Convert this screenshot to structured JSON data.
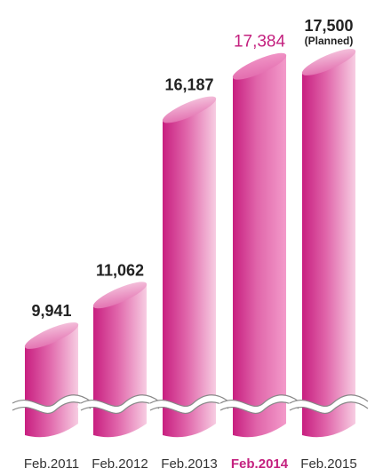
{
  "colors": {
    "accent": "#c4217f",
    "bar_dark": "#c81f80",
    "bar_mid": "#e065aa",
    "bar_light": "#f7cde2",
    "bar_light_current": "#f39bca",
    "text": "#222222"
  },
  "chart_data": {
    "type": "bar",
    "style": "3D cylinders with broken axis (wavy break lines)",
    "title": "",
    "xlabel": "",
    "ylabel": "",
    "categories": [
      "Feb.2011",
      "Feb.2012",
      "Feb.2013",
      "Feb.2014",
      "Feb.2015"
    ],
    "values": [
      9941,
      11062,
      16187,
      17384,
      17500
    ],
    "value_labels": [
      "9,941",
      "11,062",
      "16,187",
      "17,384",
      "17,500"
    ],
    "notes": [
      "",
      "",
      "",
      "",
      "(Planned)"
    ],
    "highlight_index": 3,
    "axis_break": true,
    "grid": false,
    "legend": "none"
  }
}
